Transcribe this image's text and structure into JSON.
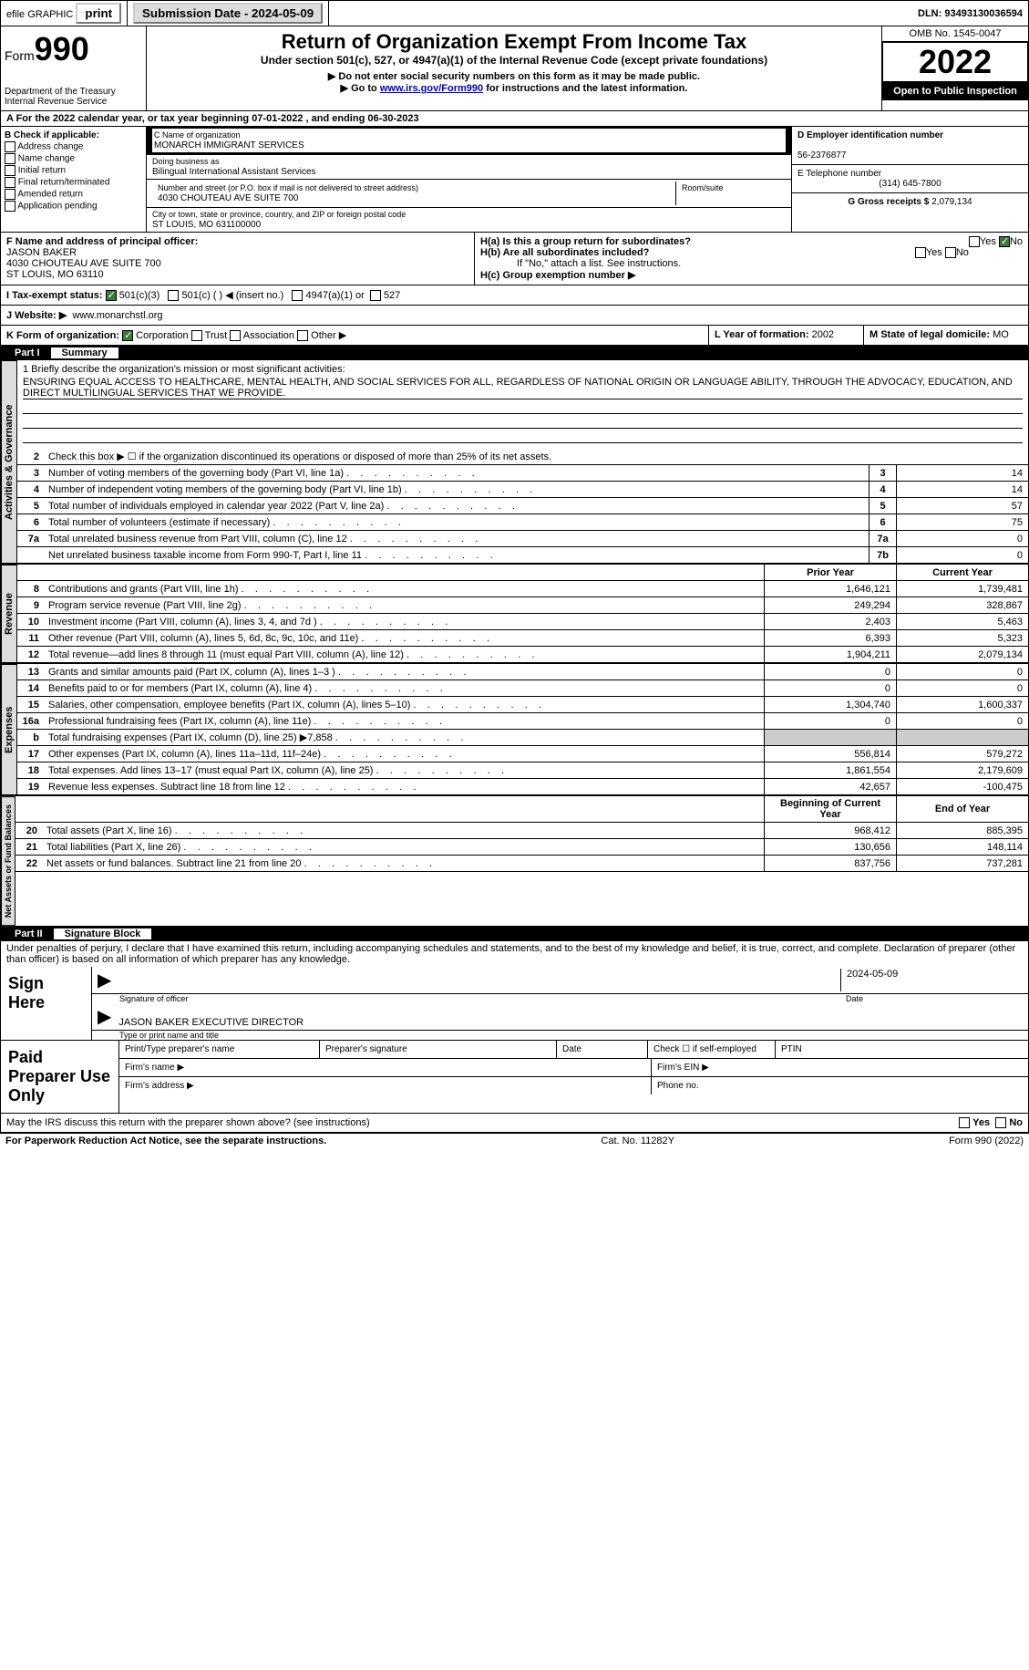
{
  "topbar": {
    "efile": "efile GRAPHIC",
    "print": "print",
    "submission": "Submission Date - 2024-05-09",
    "dln_label": "DLN:",
    "dln": "93493130036594"
  },
  "header": {
    "form_word": "Form",
    "form_num": "990",
    "dept": "Department of the Treasury",
    "irs": "Internal Revenue Service",
    "title": "Return of Organization Exempt From Income Tax",
    "subtitle": "Under section 501(c), 527, or 4947(a)(1) of the Internal Revenue Code (except private foundations)",
    "instr1": "▶ Do not enter social security numbers on this form as it may be made public.",
    "instr2_pre": "▶ Go to ",
    "instr2_link": "www.irs.gov/Form990",
    "instr2_post": " for instructions and the latest information.",
    "omb": "OMB No. 1545-0047",
    "year": "2022",
    "open": "Open to Public Inspection"
  },
  "row_a": "A For the 2022 calendar year, or tax year beginning 07-01-2022    , and ending 06-30-2023",
  "col_b": {
    "title": "B Check if applicable:",
    "opts": [
      "Address change",
      "Name change",
      "Initial return",
      "Final return/terminated",
      "Amended return",
      "Application pending"
    ]
  },
  "col_c": {
    "name_label": "C Name of organization",
    "name": "MONARCH IMMIGRANT SERVICES",
    "dba_label": "Doing business as",
    "dba": "Bilingual International Assistant Services",
    "addr_label": "Number and street (or P.O. box if mail is not delivered to street address)",
    "room_label": "Room/suite",
    "addr": "4030 CHOUTEAU AVE SUITE 700",
    "city_label": "City or town, state or province, country, and ZIP or foreign postal code",
    "city": "ST LOUIS, MO  631100000"
  },
  "col_d": {
    "ein_label": "D Employer identification number",
    "ein": "56-2376877",
    "tel_label": "E Telephone number",
    "tel": "(314) 645-7800",
    "gross_label": "G Gross receipts $",
    "gross": "2,079,134"
  },
  "row_f": {
    "f_label": "F  Name and address of principal officer:",
    "f_name": "JASON BAKER",
    "f_addr1": "4030 CHOUTEAU AVE SUITE 700",
    "f_addr2": "ST LOUIS, MO  63110",
    "ha": "H(a)  Is this a group return for subordinates?",
    "hb": "H(b)  Are all subordinates included?",
    "hb_note": "If \"No,\" attach a list. See instructions.",
    "hc": "H(c)  Group exemption number ▶",
    "yes": "Yes",
    "no": "No"
  },
  "row_i": {
    "label": "I   Tax-exempt status:",
    "o1": "501(c)(3)",
    "o2": "501(c) (  ) ◀ (insert no.)",
    "o3": "4947(a)(1) or",
    "o4": "527"
  },
  "row_j": {
    "label": "J   Website: ▶",
    "val": "www.monarchstl.org"
  },
  "row_k": {
    "label": "K Form of organization:",
    "o1": "Corporation",
    "o2": "Trust",
    "o3": "Association",
    "o4": "Other ▶",
    "l_label": "L Year of formation:",
    "l_val": "2002",
    "m_label": "M State of legal domicile:",
    "m_val": "MO"
  },
  "part1": {
    "num": "Part I",
    "title": "Summary"
  },
  "sections": {
    "s1": "Activities & Governance",
    "s2": "Revenue",
    "s3": "Expenses",
    "s4": "Net Assets or Fund Balances"
  },
  "mission": {
    "label": "1   Briefly describe the organization's mission or most significant activities:",
    "text": "ENSURING EQUAL ACCESS TO HEALTHCARE, MENTAL HEALTH, AND SOCIAL SERVICES FOR ALL, REGARDLESS OF NATIONAL ORIGIN OR LANGUAGE ABILITY, THROUGH THE ADVOCACY, EDUCATION, AND DIRECT MULTILINGUAL SERVICES THAT WE PROVIDE."
  },
  "line2": "Check this box ▶ ☐ if the organization discontinued its operations or disposed of more than 25% of its net assets.",
  "rows_gov": [
    {
      "n": "3",
      "d": "Number of voting members of the governing body (Part VI, line 1a)",
      "b": "3",
      "v": "14"
    },
    {
      "n": "4",
      "d": "Number of independent voting members of the governing body (Part VI, line 1b)",
      "b": "4",
      "v": "14"
    },
    {
      "n": "5",
      "d": "Total number of individuals employed in calendar year 2022 (Part V, line 2a)",
      "b": "5",
      "v": "57"
    },
    {
      "n": "6",
      "d": "Total number of volunteers (estimate if necessary)",
      "b": "6",
      "v": "75"
    },
    {
      "n": "7a",
      "d": "Total unrelated business revenue from Part VIII, column (C), line 12",
      "b": "7a",
      "v": "0"
    },
    {
      "n": "",
      "d": "Net unrelated business taxable income from Form 990-T, Part I, line 11",
      "b": "7b",
      "v": "0"
    }
  ],
  "col_headers": {
    "prior": "Prior Year",
    "current": "Current Year"
  },
  "rows_rev": [
    {
      "n": "8",
      "d": "Contributions and grants (Part VIII, line 1h)",
      "p": "1,646,121",
      "c": "1,739,481"
    },
    {
      "n": "9",
      "d": "Program service revenue (Part VIII, line 2g)",
      "p": "249,294",
      "c": "328,867"
    },
    {
      "n": "10",
      "d": "Investment income (Part VIII, column (A), lines 3, 4, and 7d )",
      "p": "2,403",
      "c": "5,463"
    },
    {
      "n": "11",
      "d": "Other revenue (Part VIII, column (A), lines 5, 6d, 8c, 9c, 10c, and 11e)",
      "p": "6,393",
      "c": "5,323"
    },
    {
      "n": "12",
      "d": "Total revenue—add lines 8 through 11 (must equal Part VIII, column (A), line 12)",
      "p": "1,904,211",
      "c": "2,079,134"
    }
  ],
  "rows_exp": [
    {
      "n": "13",
      "d": "Grants and similar amounts paid (Part IX, column (A), lines 1–3 )",
      "p": "0",
      "c": "0"
    },
    {
      "n": "14",
      "d": "Benefits paid to or for members (Part IX, column (A), line 4)",
      "p": "0",
      "c": "0"
    },
    {
      "n": "15",
      "d": "Salaries, other compensation, employee benefits (Part IX, column (A), lines 5–10)",
      "p": "1,304,740",
      "c": "1,600,337"
    },
    {
      "n": "16a",
      "d": "Professional fundraising fees (Part IX, column (A), line 11e)",
      "p": "0",
      "c": "0"
    },
    {
      "n": "b",
      "d": "Total fundraising expenses (Part IX, column (D), line 25) ▶7,858",
      "p": "",
      "c": "",
      "gray": true
    },
    {
      "n": "17",
      "d": "Other expenses (Part IX, column (A), lines 11a–11d, 11f–24e)",
      "p": "556,814",
      "c": "579,272"
    },
    {
      "n": "18",
      "d": "Total expenses. Add lines 13–17 (must equal Part IX, column (A), line 25)",
      "p": "1,861,554",
      "c": "2,179,609"
    },
    {
      "n": "19",
      "d": "Revenue less expenses. Subtract line 18 from line 12",
      "p": "42,657",
      "c": "-100,475"
    }
  ],
  "col_headers2": {
    "begin": "Beginning of Current Year",
    "end": "End of Year"
  },
  "rows_net": [
    {
      "n": "20",
      "d": "Total assets (Part X, line 16)",
      "p": "968,412",
      "c": "885,395"
    },
    {
      "n": "21",
      "d": "Total liabilities (Part X, line 26)",
      "p": "130,656",
      "c": "148,114"
    },
    {
      "n": "22",
      "d": "Net assets or fund balances. Subtract line 21 from line 20",
      "p": "837,756",
      "c": "737,281"
    }
  ],
  "part2": {
    "num": "Part II",
    "title": "Signature Block"
  },
  "penalty": "Under penalties of perjury, I declare that I have examined this return, including accompanying schedules and statements, and to the best of my knowledge and belief, it is true, correct, and complete. Declaration of preparer (other than officer) is based on all information of which preparer has any knowledge.",
  "sign": {
    "here": "Sign Here",
    "sig_label": "Signature of officer",
    "date_label": "Date",
    "date": "2024-05-09",
    "name": "JASON BAKER  EXECUTIVE DIRECTOR",
    "name_label": "Type or print name and title"
  },
  "prep": {
    "title": "Paid Preparer Use Only",
    "h1": "Print/Type preparer's name",
    "h2": "Preparer's signature",
    "h3": "Date",
    "h4": "Check ☐ if self-employed",
    "h5": "PTIN",
    "firm_name": "Firm's name    ▶",
    "firm_ein": "Firm's EIN ▶",
    "firm_addr": "Firm's address ▶",
    "phone": "Phone no."
  },
  "discuss": "May the IRS discuss this return with the preparer shown above? (see instructions)",
  "footer": {
    "left": "For Paperwork Reduction Act Notice, see the separate instructions.",
    "mid": "Cat. No. 11282Y",
    "right": "Form 990 (2022)"
  }
}
